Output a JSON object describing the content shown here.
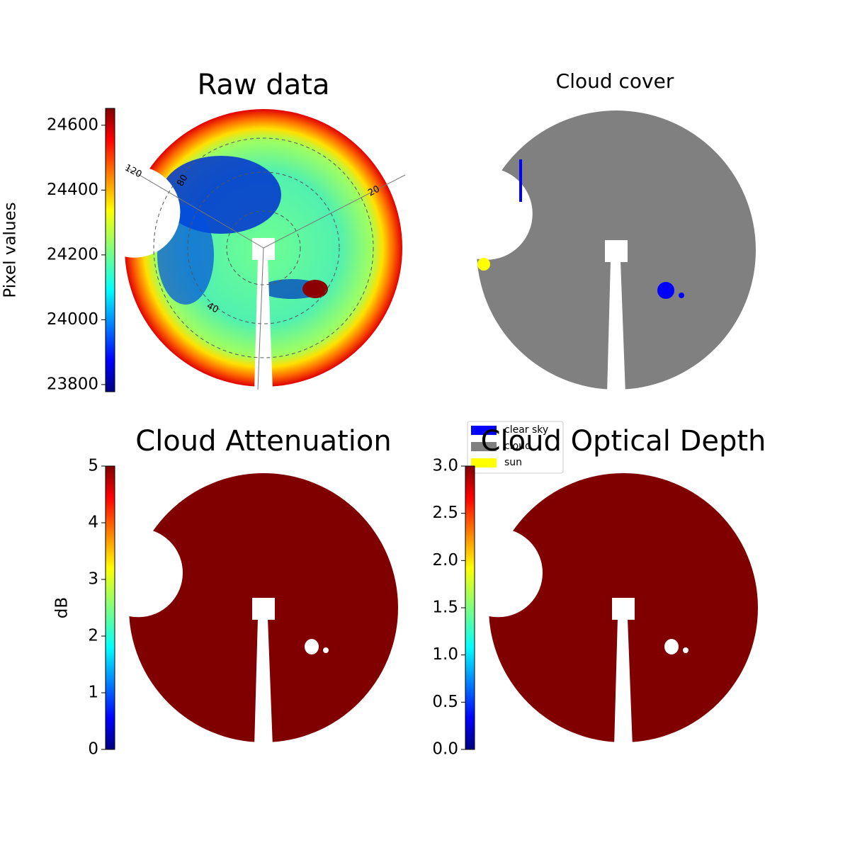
{
  "chart_data": [
    {
      "type": "sky-image",
      "title": "Raw data",
      "colorbar_label": "Pixel values",
      "colormap": "jet",
      "ylim": [
        23778,
        24652
      ],
      "yticks": [
        23800,
        24000,
        24200,
        24400,
        24600
      ],
      "annotations": [
        "120",
        "80",
        "20",
        "40"
      ]
    },
    {
      "type": "sky-mask",
      "title": "Cloud cover",
      "series": [
        {
          "name": "clear sky",
          "color": "#0000ff"
        },
        {
          "name": "cloud",
          "color": "#808080"
        },
        {
          "name": "sun",
          "color": "#ffff00"
        }
      ]
    },
    {
      "type": "sky-image",
      "title": "Cloud Attenuation",
      "colorbar_label": "dB",
      "colormap": "jet",
      "color": "#800000",
      "ylim": [
        0,
        5
      ],
      "yticks": [
        0,
        1,
        2,
        3,
        4,
        5
      ]
    },
    {
      "type": "sky-image",
      "title": "Cloud Optical Depth",
      "colormap": "jet",
      "color": "#800000",
      "ylim": [
        0,
        3
      ],
      "yticks": [
        {
          "value": 0,
          "label": "0.0"
        },
        {
          "value": 0.5,
          "label": "0.5"
        },
        {
          "value": 1,
          "label": "1.0"
        },
        {
          "value": 1.5,
          "label": "1.5"
        },
        {
          "value": 2,
          "label": "2.0"
        },
        {
          "value": 2.5,
          "label": "2.5"
        },
        {
          "value": 3,
          "label": "3.0"
        }
      ]
    }
  ]
}
